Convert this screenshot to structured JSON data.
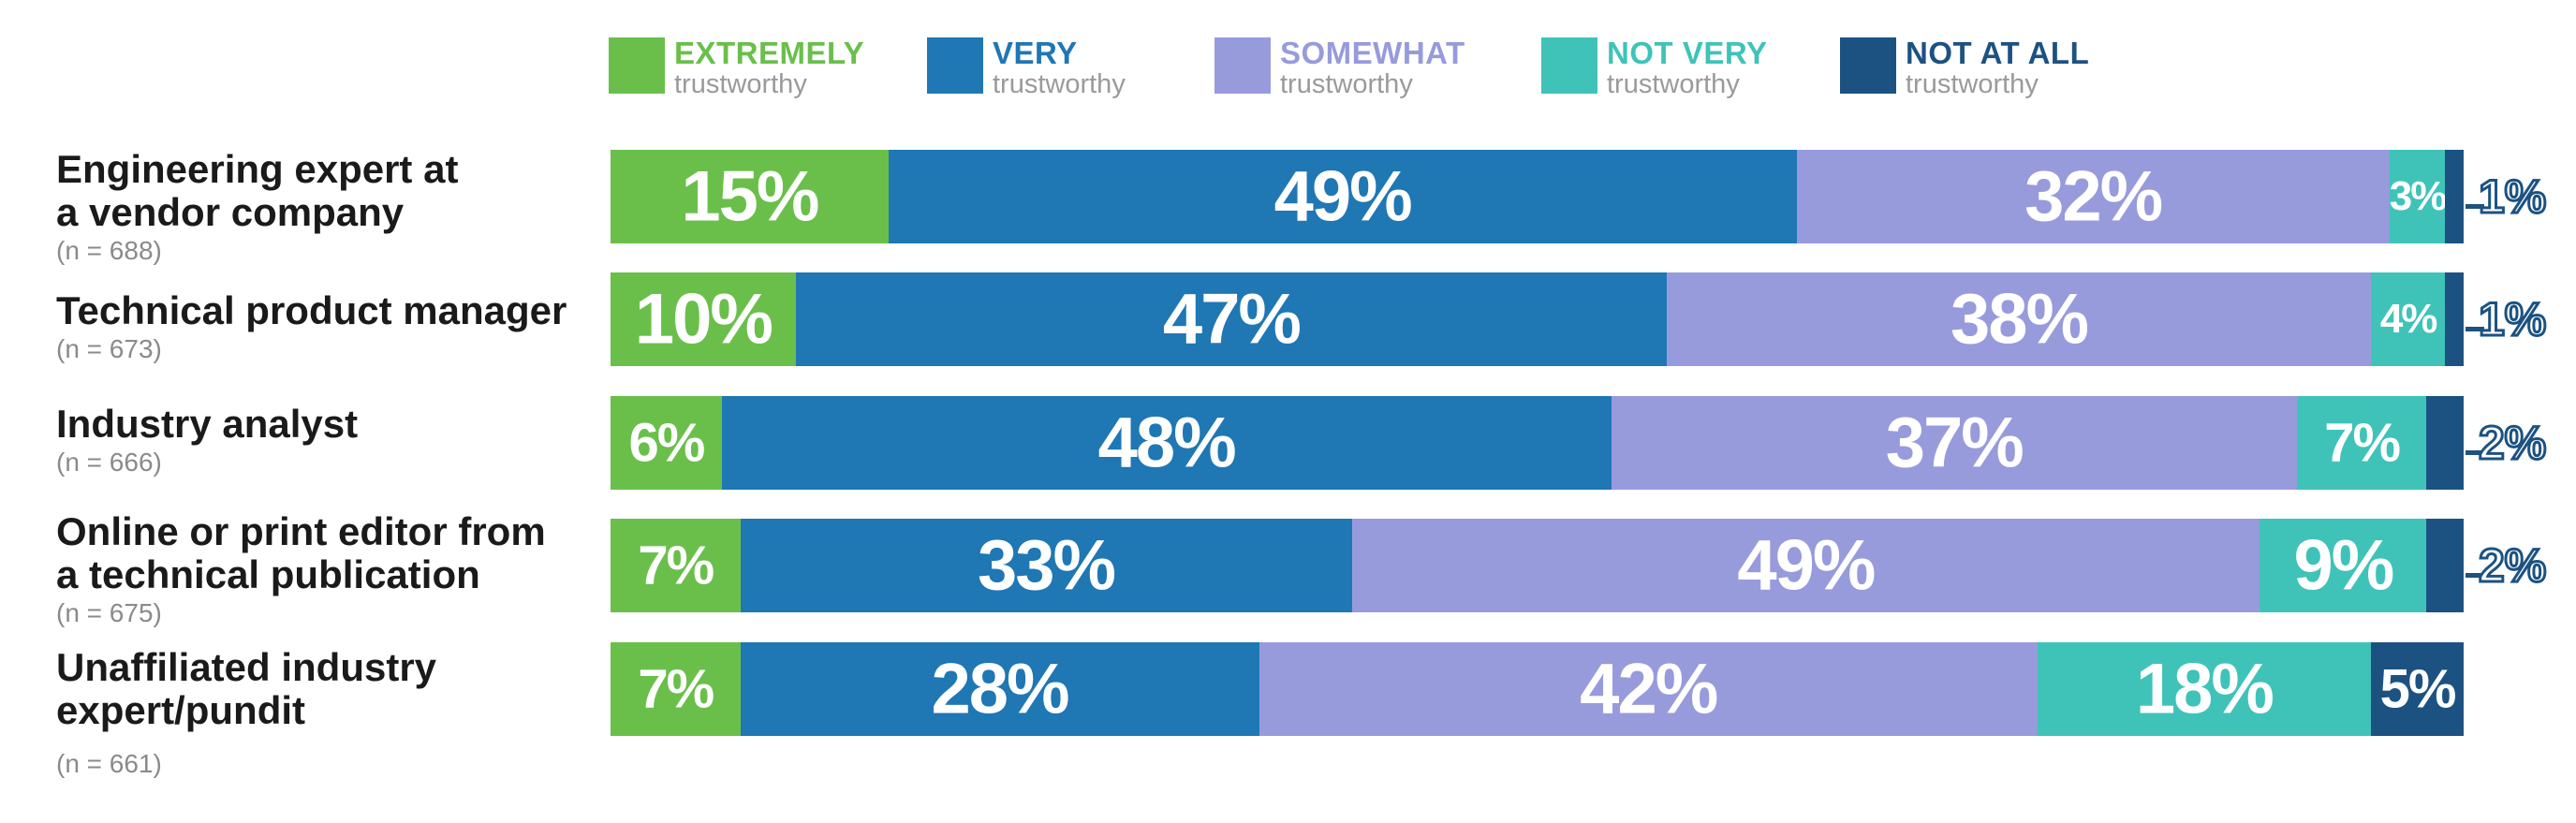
{
  "chart_data": {
    "type": "bar",
    "orientation": "horizontal",
    "stacked": true,
    "normalized": true,
    "xlim": [
      0,
      100
    ],
    "legend_position": "top",
    "categories": [
      {
        "name": "Engineering expert at\na vendor company",
        "n": "(n = 688)"
      },
      {
        "name": "Technical product manager",
        "n": "(n = 673)"
      },
      {
        "name": "Industry analyst",
        "n": "(n = 666)"
      },
      {
        "name": "Online or print editor from\na technical publication",
        "n": "(n = 675)"
      },
      {
        "name": "Unaffiliated industry\nexpert/pundit",
        "n": "(n = 661)"
      }
    ],
    "series": [
      {
        "name": "EXTREMELY",
        "sub": "trustworthy",
        "color": "#6abf4b",
        "values": [
          15,
          10,
          6,
          7,
          7
        ]
      },
      {
        "name": "VERY",
        "sub": "trustworthy",
        "color": "#1f77b4",
        "values": [
          49,
          47,
          48,
          33,
          28
        ]
      },
      {
        "name": "SOMEWHAT",
        "sub": "trustworthy",
        "color": "#979bdc",
        "values": [
          32,
          38,
          37,
          49,
          42
        ]
      },
      {
        "name": "NOT VERY",
        "sub": "trustworthy",
        "color": "#3fc3b9",
        "values": [
          3,
          4,
          7,
          9,
          18
        ]
      },
      {
        "name": "NOT AT ALL",
        "sub": "trustworthy",
        "color": "#1c5282",
        "values": [
          1,
          1,
          2,
          2,
          5
        ]
      }
    ]
  }
}
